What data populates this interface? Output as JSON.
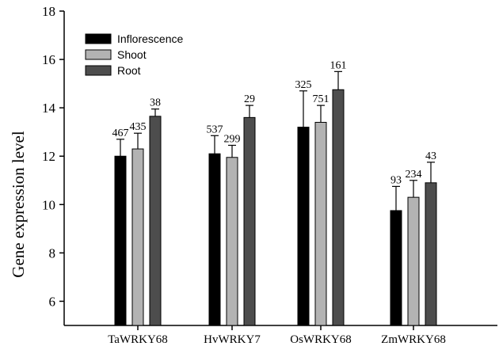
{
  "chart_data": {
    "type": "bar",
    "title": "",
    "xlabel": "",
    "ylabel": "Gene expression level",
    "ylim": [
      5,
      18
    ],
    "yticks": [
      6,
      8,
      10,
      12,
      14,
      16,
      18
    ],
    "grid": false,
    "legend_position": "top-left",
    "categories": [
      "TaWRKY68",
      "HvWRKY7",
      "OsWRKY68",
      "ZmWRKY68"
    ],
    "series": [
      {
        "name": "Inflorescence",
        "color": "#000000",
        "values": [
          12.0,
          12.1,
          13.2,
          9.75
        ],
        "errors": [
          0.7,
          0.75,
          1.5,
          1.0
        ],
        "labels": [
          "467",
          "537",
          "325",
          "93"
        ]
      },
      {
        "name": "Shoot",
        "color": "#b3b3b3",
        "values": [
          12.3,
          11.95,
          13.4,
          10.3
        ],
        "errors": [
          0.65,
          0.5,
          0.7,
          0.7
        ],
        "labels": [
          "435",
          "299",
          "751",
          "234"
        ]
      },
      {
        "name": "Root",
        "color": "#4d4d4d",
        "values": [
          13.65,
          13.6,
          14.75,
          10.9
        ],
        "errors": [
          0.3,
          0.5,
          0.75,
          0.85
        ],
        "labels": [
          "38",
          "29",
          "161",
          "43"
        ]
      }
    ]
  }
}
